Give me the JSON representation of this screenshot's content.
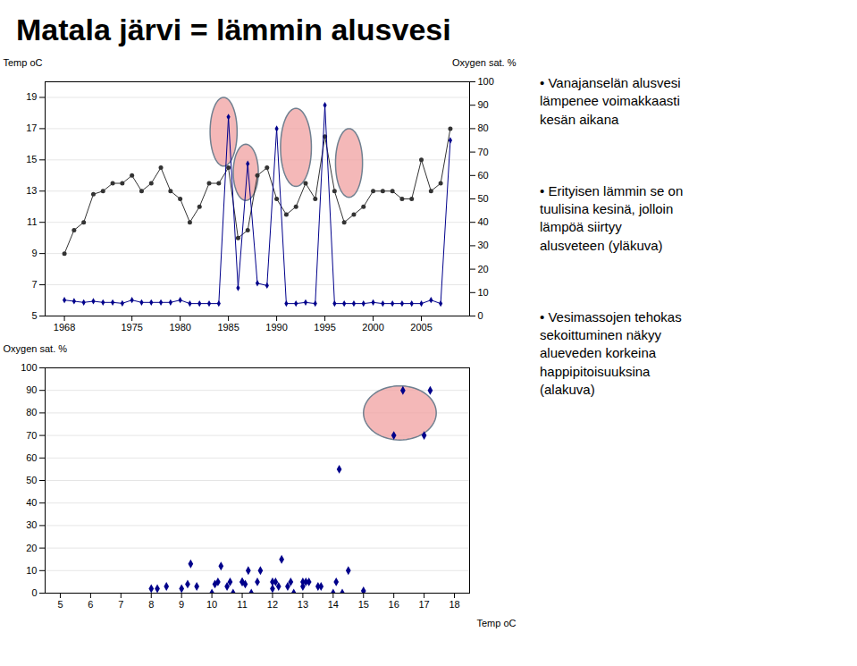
{
  "chart_data": [
    {
      "type": "line",
      "title": "Matala järvi = lämmin alusvesi",
      "x": [
        1968,
        1969,
        1970,
        1971,
        1972,
        1973,
        1974,
        1975,
        1976,
        1977,
        1978,
        1979,
        1980,
        1981,
        1982,
        1983,
        1984,
        1985,
        1986,
        1987,
        1988,
        1989,
        1990,
        1991,
        1992,
        1993,
        1994,
        1995,
        1996,
        1997,
        1998,
        1999,
        2000,
        2001,
        2002,
        2003,
        2004,
        2005,
        2006,
        2007,
        2008
      ],
      "xlim": [
        1966,
        2010
      ],
      "xticks": [
        1968,
        1975,
        1980,
        1985,
        1990,
        1995,
        2000,
        2005
      ],
      "ylabel": "Temp oC",
      "ylim": [
        5,
        20
      ],
      "yticks": [
        5,
        7,
        9,
        11,
        13,
        15,
        17,
        19
      ],
      "y2label": "Oxygen sat. %",
      "y2lim": [
        0,
        100
      ],
      "y2ticks": [
        0,
        10,
        20,
        30,
        40,
        50,
        60,
        70,
        80,
        90,
        100
      ],
      "grid": true,
      "series": [
        {
          "color": "#333333",
          "marker": "circle",
          "values": [
            9,
            10.5,
            11,
            12.8,
            13,
            13.5,
            13.5,
            14,
            13,
            13.5,
            14.5,
            13,
            12.5,
            11,
            12,
            13.5,
            13.5,
            14.5,
            10,
            10.5,
            14,
            14.5,
            12.5,
            11.5,
            12,
            13.5,
            12.5,
            16.5,
            13,
            11,
            11.5,
            12,
            13,
            13,
            13,
            12.5,
            12.5,
            15,
            13,
            13.5,
            17
          ]
        },
        {
          "color": "#00008B",
          "marker": "diamond",
          "axis": "y2",
          "values": [
            6.8,
            6.3,
            5.8,
            6.3,
            5.8,
            5.8,
            5.4,
            6.8,
            5.8,
            5.8,
            5.8,
            5.8,
            6.8,
            5.3,
            5.3,
            5.3,
            5.3,
            85,
            12,
            65,
            14,
            13,
            80,
            5.3,
            5.3,
            5.8,
            5.3,
            90,
            5.3,
            5.3,
            5.3,
            5.3,
            5.8,
            5.3,
            5.3,
            5.3,
            5.3,
            5.3,
            6.8,
            5.3,
            75
          ]
        }
      ],
      "ellipses": [
        {
          "cx": 1984.5,
          "cy": 16.8,
          "rx": 1.4,
          "ry": 2.2,
          "color": "#f0a0a0",
          "edgecolor": "#708090"
        },
        {
          "cx": 1986.8,
          "cy": 14.2,
          "rx": 1.3,
          "ry": 1.8,
          "color": "#f0a0a0",
          "edgecolor": "#708090"
        },
        {
          "cx": 1992.0,
          "cy": 15.8,
          "rx": 1.6,
          "ry": 2.5,
          "color": "#f0a0a0",
          "edgecolor": "#708090"
        },
        {
          "cx": 1997.5,
          "cy": 14.8,
          "rx": 1.4,
          "ry": 2.2,
          "color": "#f0a0a0",
          "edgecolor": "#708090"
        }
      ],
      "annotations": [
        "•  Vanajanselän alusvesi\nlämpenee voimakkaasti\nkesän aikana",
        "•  Erityisen lämmin se on\ntuulisina kesinä, jolloin\nlämpöä siirtyy\nalusveteen (yläkuva)",
        "•  Vesimassojen tehokas\nsekoittuminen näkyy\nalueveden korkeina\nhappipitoisuuksina\n(alakuva)"
      ]
    },
    {
      "type": "scatter",
      "x": [
        8.0,
        8.2,
        8.5,
        9.0,
        9.2,
        9.3,
        9.5,
        10.0,
        10.1,
        10.2,
        10.3,
        10.5,
        10.6,
        10.7,
        11.0,
        11.0,
        11.1,
        11.2,
        11.3,
        11.5,
        11.6,
        12.0,
        12.0,
        12.1,
        12.2,
        12.3,
        12.5,
        12.6,
        12.7,
        13.0,
        13.0,
        13.1,
        13.2,
        13.5,
        13.6,
        14.0,
        14.1,
        14.2,
        14.3,
        14.5,
        15.0,
        16.0,
        16.3,
        17.0,
        17.2
      ],
      "xlabel": "Temp oC",
      "ylabel": "Oxygen sat. %",
      "xlim": [
        4.5,
        18.5
      ],
      "xticks": [
        5,
        6,
        7,
        8,
        9,
        10,
        11,
        12,
        13,
        14,
        15,
        16,
        17,
        18
      ],
      "ylim": [
        0,
        100
      ],
      "yticks": [
        0,
        10,
        20,
        30,
        40,
        50,
        60,
        70,
        80,
        90,
        100
      ],
      "grid": true,
      "series": [
        {
          "color": "#00008B",
          "marker": "diamond",
          "values": [
            2,
            2,
            3,
            2,
            4,
            13,
            3,
            0,
            4,
            5,
            12,
            3,
            5,
            0,
            5,
            5,
            4,
            10,
            0,
            5,
            10,
            2,
            5,
            5,
            3,
            15,
            3,
            5,
            0,
            5,
            3,
            5,
            5,
            3,
            3,
            0,
            5,
            55,
            0,
            10,
            1,
            70,
            90,
            70,
            90
          ]
        }
      ],
      "ellipses": [
        {
          "cx": 16.2,
          "cy": 80,
          "rx": 1.2,
          "ry": 12,
          "color": "#f0a0a0",
          "edgecolor": "#708090"
        }
      ]
    }
  ]
}
